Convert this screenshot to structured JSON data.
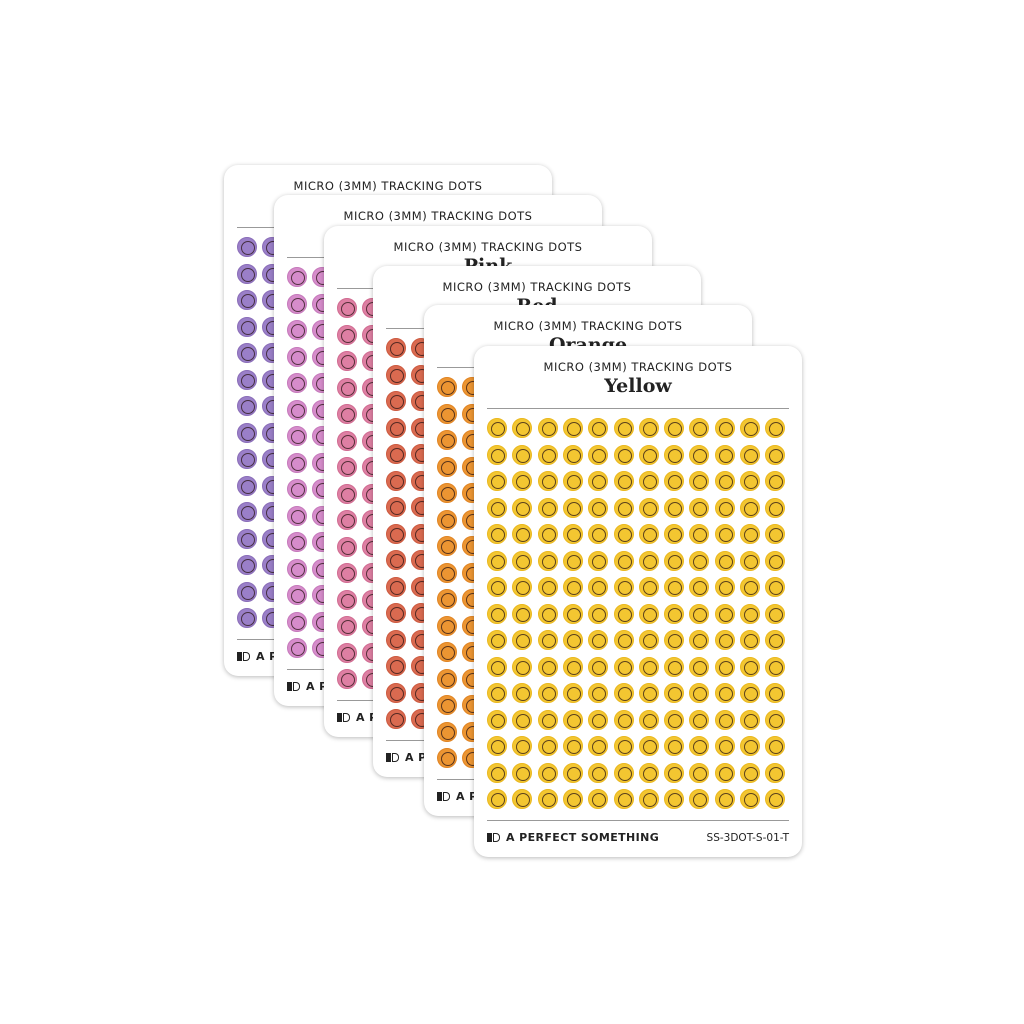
{
  "brand": "A PERFECT SOMETHING",
  "sheets": [
    {
      "header": "MICRO (3MM) TRACKING DOTS",
      "title": "",
      "color": "#9a7fc8",
      "ring": "#8a6db8",
      "sku": ""
    },
    {
      "header": "MICRO (3MM) TRACKING DOTS",
      "title": "",
      "color": "#d68ccb",
      "ring": "#c579bb",
      "sku": ""
    },
    {
      "header": "MICRO (3MM) TRACKING DOTS",
      "title": "Pink",
      "color": "#de7fa3",
      "ring": "#d06b91",
      "sku": ""
    },
    {
      "header": "MICRO (3MM) TRACKING DOTS",
      "title": "Red",
      "color": "#da6a50",
      "ring": "#cc5a40",
      "sku": ""
    },
    {
      "header": "MICRO (3MM) TRACKING DOTS",
      "title": "Orange",
      "color": "#ec9532",
      "ring": "#e08423",
      "sku": ""
    },
    {
      "header": "MICRO (3MM) TRACKING DOTS",
      "title": "Yellow",
      "color": "#f3c631",
      "ring": "#eab81e",
      "sku": "SS-3DOT-S-01-T"
    }
  ],
  "grid": {
    "rows": 15,
    "columns": 12
  }
}
